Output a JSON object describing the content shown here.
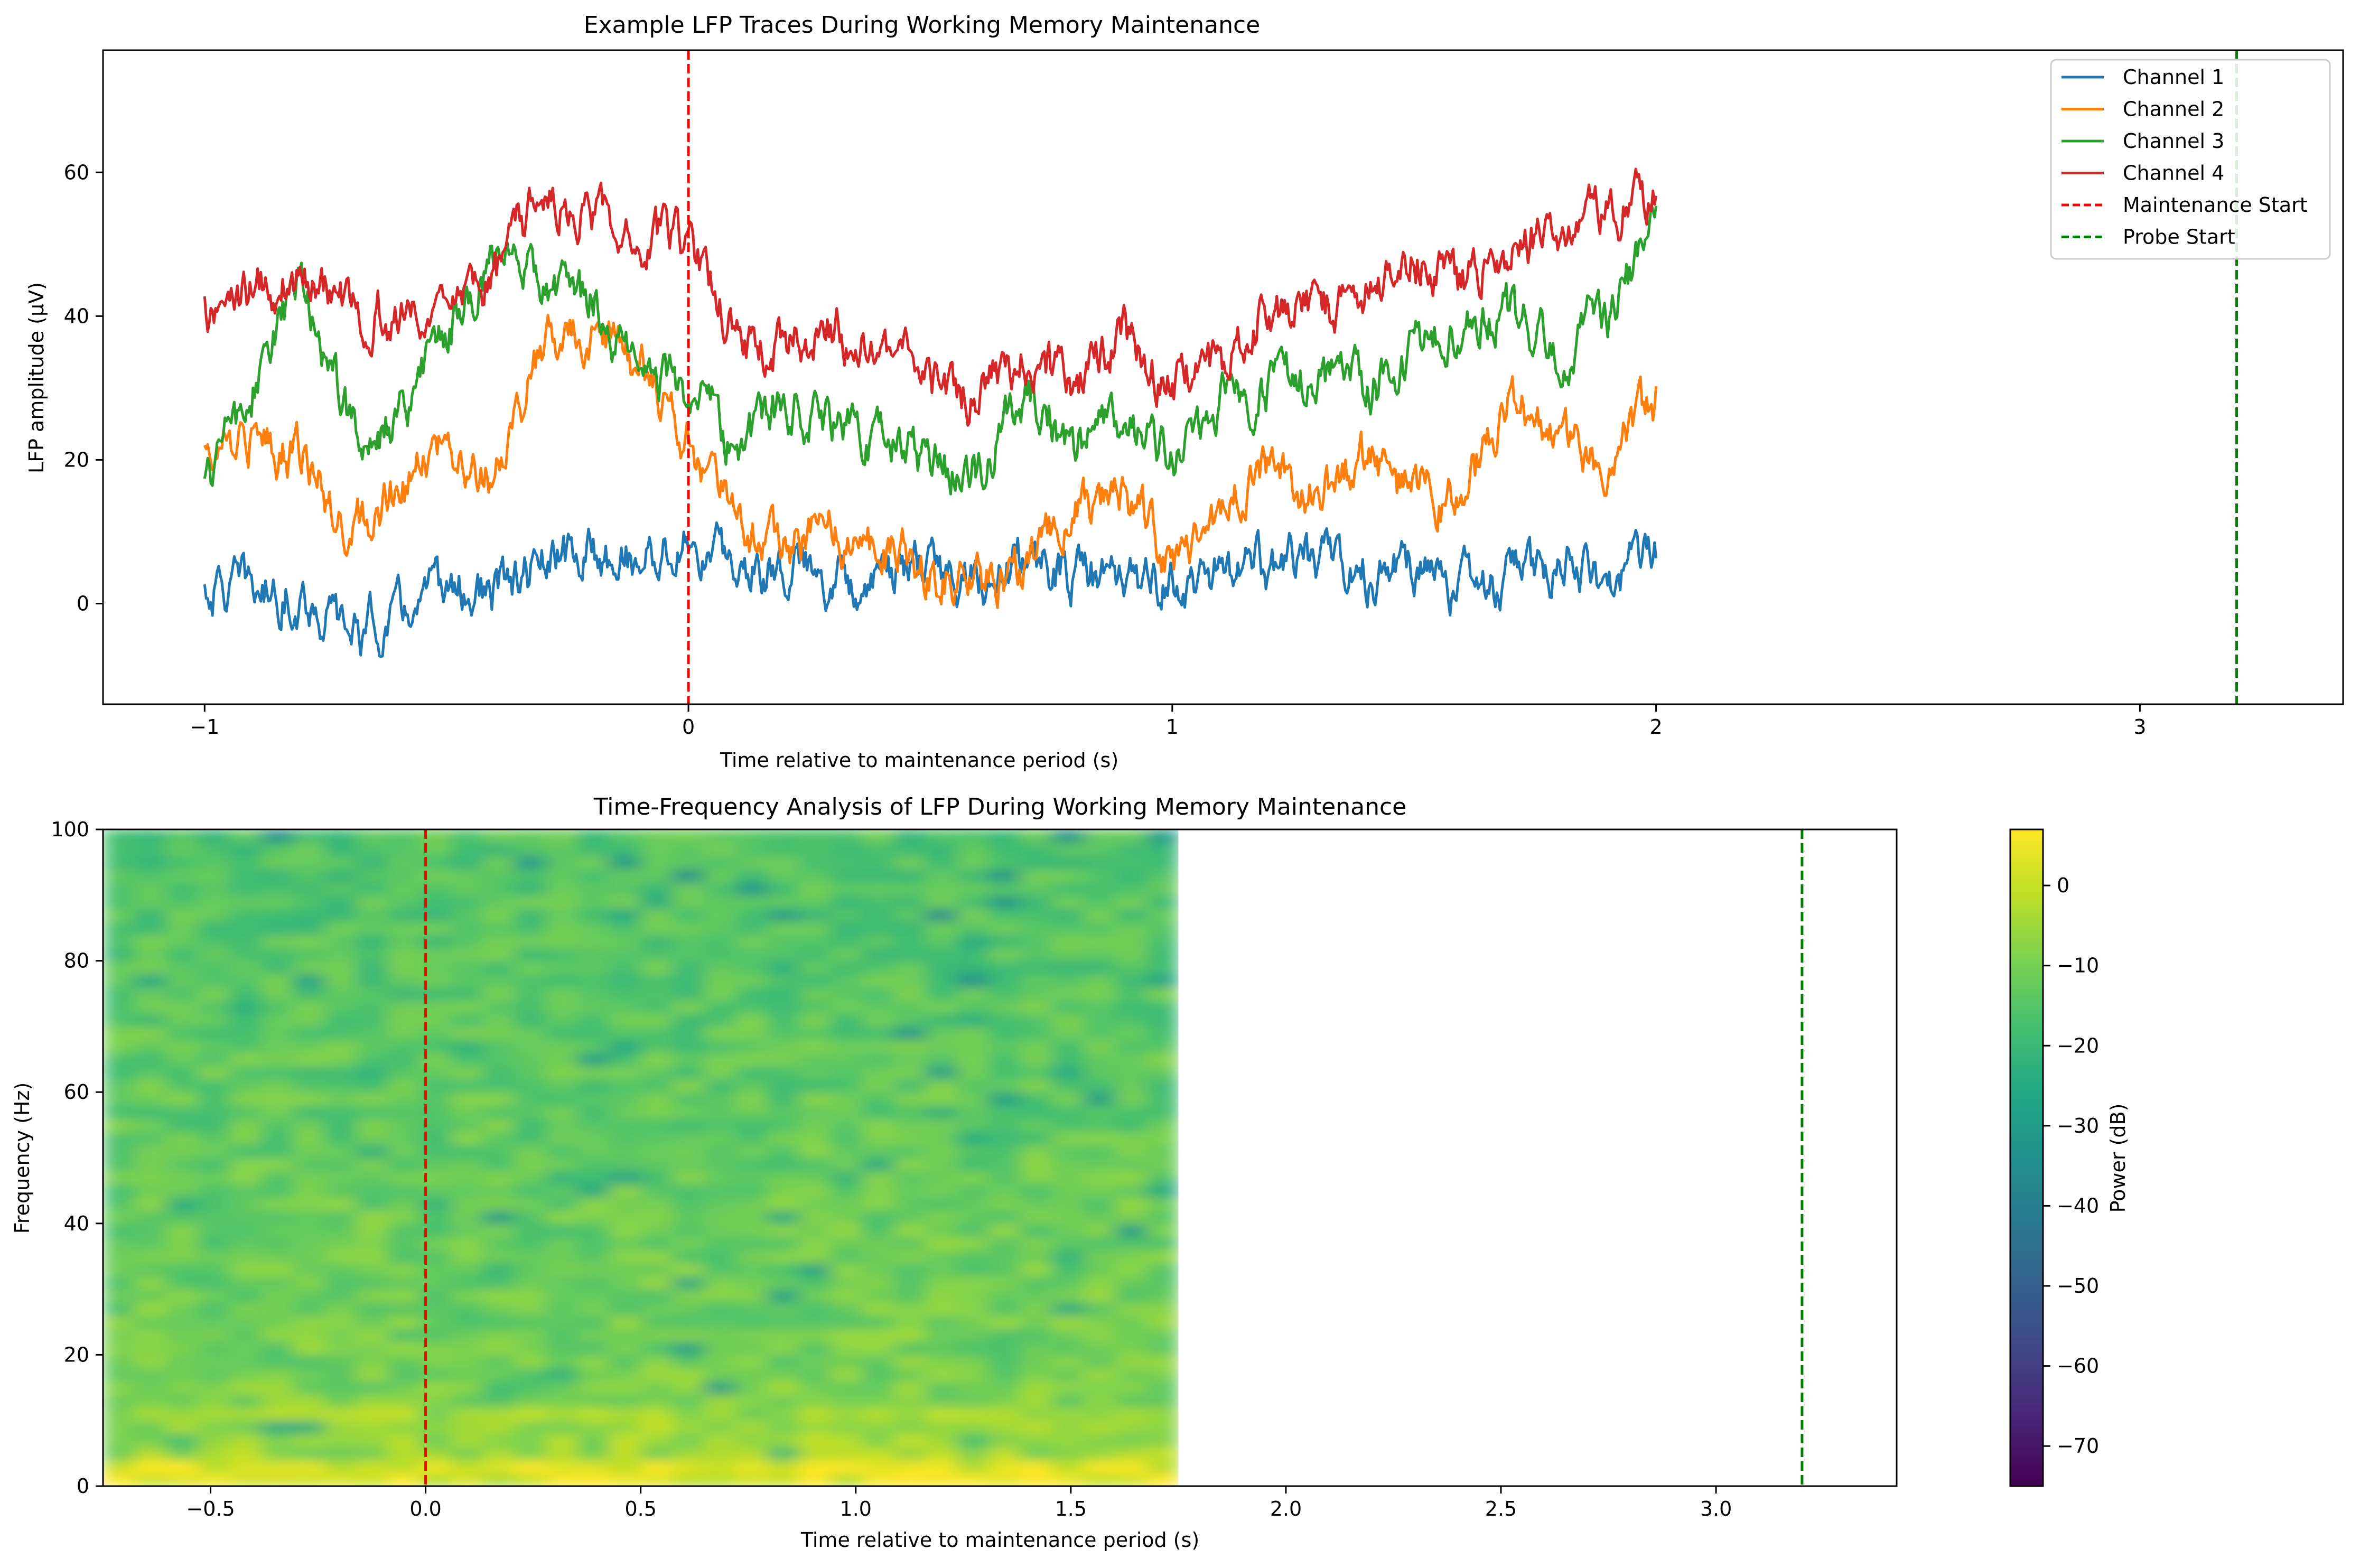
{
  "chart_data": [
    {
      "type": "line",
      "title": "Example LFP Traces During Working Memory Maintenance",
      "xlabel": "Time relative to maintenance period (s)",
      "ylabel": "LFP amplitude (µV)",
      "xlim": [
        -1.21,
        3.42
      ],
      "ylim": [
        -14,
        77
      ],
      "x_ticks": [
        -1,
        0,
        1,
        2,
        3
      ],
      "x_tick_labels": [
        "−1",
        "0",
        "1",
        "2",
        "3"
      ],
      "y_ticks": [
        0,
        20,
        40,
        60
      ],
      "y_tick_labels": [
        "0",
        "20",
        "40",
        "60"
      ],
      "grid": false,
      "legend_position": "top-right",
      "series": [
        {
          "name": "Channel 1",
          "color": "#1f77b4",
          "x": [
            -1.0,
            -0.9,
            -0.8,
            -0.7,
            -0.6,
            -0.5,
            -0.4,
            -0.3,
            -0.2,
            -0.1,
            0.0,
            0.1,
            0.2,
            0.3,
            0.4,
            0.5,
            0.6,
            0.7,
            0.8,
            0.9,
            1.0,
            1.1,
            1.2,
            1.3,
            1.4,
            1.5,
            1.6,
            1.7,
            1.8,
            1.9,
            2.0
          ],
          "values": [
            2,
            2,
            1,
            -4,
            -2,
            2,
            1,
            5,
            7,
            6,
            8,
            5,
            6,
            4,
            4,
            5,
            3,
            6,
            4,
            3,
            3,
            4,
            5,
            6,
            4,
            5,
            2,
            3,
            6,
            3,
            7
          ]
        },
        {
          "name": "Channel 2",
          "color": "#ff7f0e",
          "x": [
            -1.0,
            -0.9,
            -0.8,
            -0.7,
            -0.6,
            -0.5,
            -0.4,
            -0.3,
            -0.2,
            -0.1,
            0.0,
            0.1,
            0.2,
            0.3,
            0.4,
            0.5,
            0.6,
            0.7,
            0.8,
            0.9,
            1.0,
            1.1,
            1.2,
            1.3,
            1.4,
            1.5,
            1.6,
            1.7,
            1.8,
            1.9,
            2.0
          ],
          "values": [
            21,
            23,
            20,
            10,
            15,
            22,
            18,
            35,
            38,
            33,
            22,
            12,
            8,
            10,
            8,
            5,
            2,
            5,
            12,
            15,
            5,
            12,
            20,
            15,
            20,
            15,
            15,
            28,
            22,
            18,
            28
          ]
        },
        {
          "name": "Channel 3",
          "color": "#2ca02c",
          "x": [
            -1.0,
            -0.9,
            -0.8,
            -0.7,
            -0.6,
            -0.5,
            -0.4,
            -0.3,
            -0.2,
            -0.1,
            0.0,
            0.1,
            0.2,
            0.3,
            0.4,
            0.5,
            0.6,
            0.7,
            0.8,
            0.9,
            1.0,
            1.1,
            1.2,
            1.3,
            1.4,
            1.5,
            1.6,
            1.7,
            1.8,
            1.9,
            2.0
          ],
          "values": [
            16,
            30,
            45,
            25,
            25,
            38,
            48,
            45,
            42,
            33,
            30,
            22,
            28,
            25,
            22,
            20,
            18,
            30,
            22,
            25,
            20,
            28,
            30,
            32,
            30,
            35,
            38,
            40,
            35,
            40,
            52
          ]
        },
        {
          "name": "Channel 4",
          "color": "#d62728",
          "x": [
            -1.0,
            -0.9,
            -0.8,
            -0.7,
            -0.6,
            -0.5,
            -0.4,
            -0.3,
            -0.2,
            -0.1,
            0.0,
            0.1,
            0.2,
            0.3,
            0.4,
            0.5,
            0.6,
            0.7,
            0.8,
            0.9,
            1.0,
            1.1,
            1.2,
            1.3,
            1.4,
            1.5,
            1.6,
            1.7,
            1.8,
            1.9,
            2.0
          ],
          "values": [
            41,
            43,
            46,
            42,
            40,
            38,
            45,
            58,
            55,
            52,
            50,
            38,
            35,
            38,
            36,
            32,
            28,
            35,
            30,
            38,
            30,
            32,
            42,
            40,
            45,
            48,
            45,
            50,
            52,
            55,
            56
          ]
        }
      ],
      "reference_lines": [
        {
          "name": "Maintenance Start",
          "x": 0,
          "color": "#ff0000",
          "style": "dashed"
        },
        {
          "name": "Probe Start",
          "x": 3.2,
          "color": "#008000",
          "style": "dashed"
        }
      ]
    },
    {
      "type": "heatmap",
      "title": "Time-Frequency Analysis of LFP During Working Memory Maintenance",
      "xlabel": "Time relative to maintenance period (s)",
      "ylabel": "Frequency (Hz)",
      "xlim": [
        -0.75,
        3.42
      ],
      "ylim": [
        0,
        100
      ],
      "data_extent_x": [
        -0.75,
        1.75
      ],
      "x_ticks": [
        -0.5,
        0.0,
        0.5,
        1.0,
        1.5,
        2.0,
        2.5,
        3.0
      ],
      "x_tick_labels": [
        "−0.5",
        "0.0",
        "0.5",
        "1.0",
        "1.5",
        "2.0",
        "2.5",
        "3.0"
      ],
      "y_ticks": [
        0,
        20,
        40,
        60,
        80,
        100
      ],
      "y_tick_labels": [
        "0",
        "20",
        "40",
        "60",
        "80",
        "100"
      ],
      "colormap": "viridis",
      "colorbar": {
        "label": "Power (dB)",
        "range": [
          -75,
          7
        ],
        "ticks": [
          0,
          -10,
          -20,
          -30,
          -40,
          -50,
          -60,
          -70
        ],
        "tick_labels": [
          "0",
          "−10",
          "−20",
          "−30",
          "−40",
          "−50",
          "−60",
          "−70"
        ]
      },
      "reference_lines": [
        {
          "x": 0,
          "color": "#ff0000",
          "style": "dashed"
        },
        {
          "x": 3.2,
          "color": "#008000",
          "style": "dashed"
        }
      ]
    }
  ]
}
